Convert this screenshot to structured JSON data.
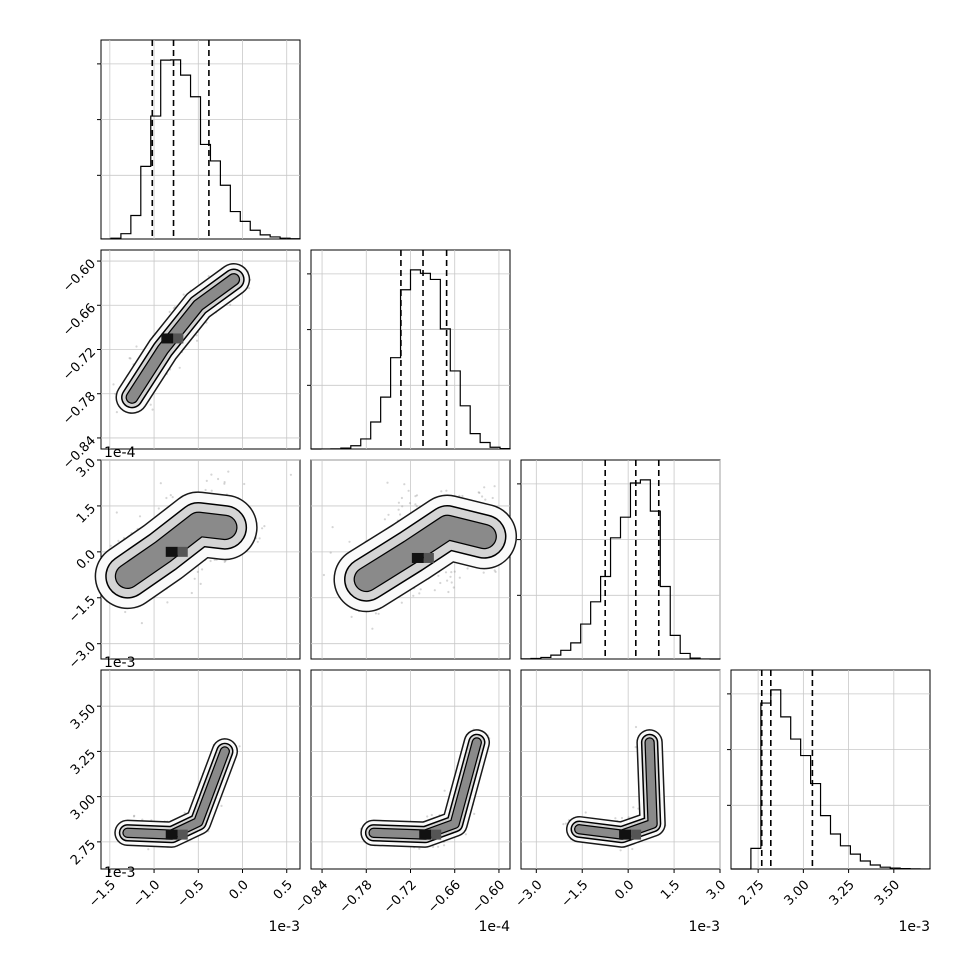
{
  "chart_data": {
    "type": "corner",
    "parameters": [
      {
        "range": [
          -1.6,
          0.65
        ],
        "ticks": [
          -1.5,
          -1.0,
          -0.5,
          0.0,
          0.5
        ],
        "tick_labels": [
          "−1.5",
          "−1.0",
          "−0.5",
          "0.0",
          "0.5"
        ],
        "offset": "1e-3",
        "quantiles": [
          -1.02,
          -0.78,
          -0.38
        ],
        "dist": {
          "type": "skew",
          "peak": -0.84,
          "left_sd": 0.18,
          "right_sd": 0.4
        }
      },
      {
        "range": [
          -0.855,
          -0.585
        ],
        "ticks": [
          -0.84,
          -0.78,
          -0.72,
          -0.66,
          -0.6
        ],
        "tick_labels": [
          "−0.84",
          "−0.78",
          "−0.72",
          "−0.66",
          "−0.60"
        ],
        "offset": "1e-4",
        "quantiles": [
          -0.733,
          -0.703,
          -0.671
        ],
        "dist": {
          "type": "normal",
          "mean": -0.703,
          "sd": 0.032
        }
      },
      {
        "range": [
          -3.5,
          3.0
        ],
        "ticks": [
          -3.0,
          -1.5,
          0.0,
          1.5,
          3.0
        ],
        "tick_labels": [
          "−3.0",
          "−1.5",
          "0.0",
          "1.5",
          "3.0"
        ],
        "offset": "1e-3",
        "quantiles": [
          -0.75,
          0.25,
          1.0
        ],
        "dist": {
          "type": "skew",
          "peak": 0.55,
          "left_sd": 1.05,
          "right_sd": 0.5
        }
      },
      {
        "range": [
          2.6,
          3.7
        ],
        "ticks": [
          2.75,
          3.0,
          3.25,
          3.5
        ],
        "tick_labels": [
          "2.75",
          "3.00",
          "3.25",
          "3.50"
        ],
        "offset": "1e-3",
        "quantiles": [
          2.77,
          2.82,
          3.05
        ],
        "dist": {
          "type": "skew",
          "peak": 2.79,
          "left_sd": 0.025,
          "right_sd": 0.22
        }
      }
    ],
    "ylabel_offsets": [
      "1e-4",
      "1e-3",
      "1e-3"
    ],
    "pairs": [
      {
        "i": 1,
        "j": 0,
        "pts": [
          [
            -1.25,
            -0.785
          ],
          [
            -0.9,
            -0.72
          ],
          [
            -0.5,
            -0.66
          ],
          [
            -0.1,
            -0.625
          ]
        ],
        "spread": 0.012,
        "core": [
          -0.85,
          -0.705
        ]
      },
      {
        "i": 2,
        "j": 0,
        "pts": [
          [
            -1.3,
            -0.8
          ],
          [
            -0.9,
            0.0
          ],
          [
            -0.5,
            0.9
          ],
          [
            -0.2,
            0.8
          ]
        ],
        "spread": 0.7,
        "core": [
          -0.8,
          0.0
        ]
      },
      {
        "i": 2,
        "j": 1,
        "pts": [
          [
            -0.78,
            -0.9
          ],
          [
            -0.72,
            0.0
          ],
          [
            -0.67,
            0.8
          ],
          [
            -0.62,
            0.5
          ]
        ],
        "spread": 0.7,
        "core": [
          -0.71,
          -0.2
        ]
      },
      {
        "i": 3,
        "j": 0,
        "pts": [
          [
            -1.3,
            2.8
          ],
          [
            -0.8,
            2.79
          ],
          [
            -0.5,
            2.86
          ],
          [
            -0.2,
            3.25
          ]
        ],
        "spread": 0.035,
        "core": [
          -0.8,
          2.79
        ]
      },
      {
        "i": 3,
        "j": 1,
        "pts": [
          [
            -0.77,
            2.8
          ],
          [
            -0.7,
            2.79
          ],
          [
            -0.66,
            2.85
          ],
          [
            -0.63,
            3.3
          ]
        ],
        "spread": 0.035,
        "core": [
          -0.7,
          2.79
        ]
      },
      {
        "i": 3,
        "j": 2,
        "pts": [
          [
            -1.6,
            2.82
          ],
          [
            -0.2,
            2.79
          ],
          [
            0.8,
            2.85
          ],
          [
            0.7,
            3.3
          ]
        ],
        "spread": 0.035,
        "core": [
          -0.1,
          2.79
        ]
      }
    ],
    "grid": true,
    "quantile_style": "dashed"
  }
}
